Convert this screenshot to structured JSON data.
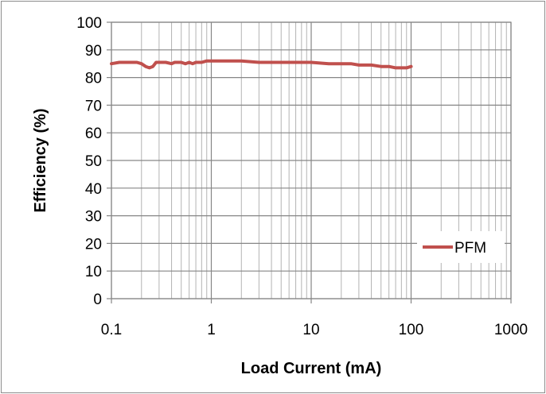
{
  "chart_data": {
    "type": "line",
    "xlabel": "Load Current (mA)",
    "ylabel": "Efficiency (%)",
    "x_scale": "log",
    "xlim": [
      0.1,
      1000
    ],
    "ylim": [
      0,
      100
    ],
    "x_ticks": [
      "0.1",
      "1",
      "10",
      "100",
      "1000"
    ],
    "y_ticks": [
      "0",
      "10",
      "20",
      "30",
      "40",
      "50",
      "60",
      "70",
      "80",
      "90",
      "100"
    ],
    "grid": {
      "major": true,
      "minor_x": true
    },
    "legend": {
      "position": "right",
      "entries": [
        "PFM"
      ]
    },
    "series": [
      {
        "name": "PFM",
        "color": "#c0504d",
        "x": [
          0.1,
          0.12,
          0.15,
          0.18,
          0.2,
          0.22,
          0.24,
          0.26,
          0.28,
          0.3,
          0.35,
          0.4,
          0.43,
          0.46,
          0.5,
          0.55,
          0.6,
          0.65,
          0.7,
          0.75,
          0.8,
          0.9,
          1,
          1.5,
          2,
          3,
          5,
          7,
          10,
          15,
          20,
          25,
          30,
          40,
          50,
          60,
          70,
          80,
          90,
          100
        ],
        "values": [
          85,
          85.5,
          85.5,
          85.5,
          85,
          84,
          83.5,
          84,
          85.5,
          85.5,
          85.5,
          85,
          85.5,
          85.5,
          85.5,
          85,
          85.5,
          85,
          85.5,
          85.5,
          85.5,
          86,
          86,
          86,
          86,
          85.5,
          85.5,
          85.5,
          85.5,
          85,
          85,
          85,
          84.5,
          84.5,
          84,
          84,
          83.5,
          83.5,
          83.5,
          84
        ]
      }
    ]
  }
}
